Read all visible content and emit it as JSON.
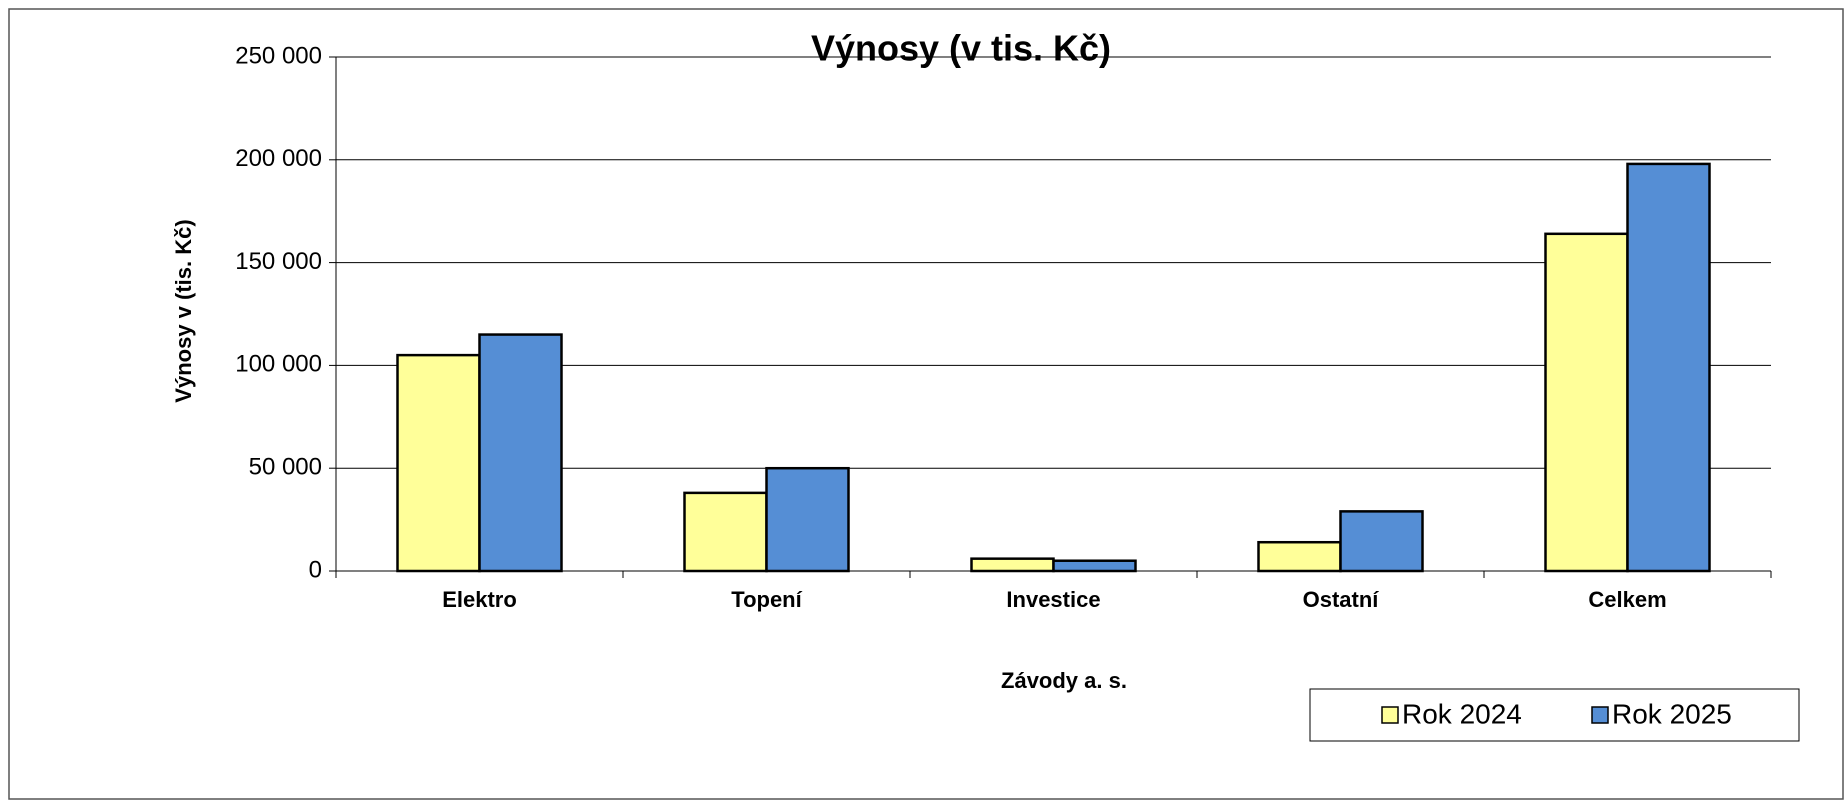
{
  "chart_data": {
    "type": "bar",
    "title": "Výnosy (v tis. Kč)",
    "x_label": "Závody a. s.",
    "y_label": "Výnosy v (tis. Kč)",
    "categories": [
      "Elektro",
      "Topení",
      "Investice",
      "Ostatní",
      "Celkem"
    ],
    "series": [
      {
        "name": "Rok 2024",
        "color": "#ffff99",
        "values": [
          105000,
          38000,
          6000,
          14000,
          164000
        ]
      },
      {
        "name": "Rok 2025",
        "color": "#558ed5",
        "values": [
          115000,
          50000,
          5000,
          29000,
          198000
        ]
      }
    ],
    "ylim": [
      0,
      250000
    ],
    "yticks": [
      0,
      {
        "value": 50000,
        "label": "50 000"
      },
      {
        "value": 100000,
        "label": "100 000"
      },
      {
        "value": 150000,
        "label": "150 000"
      },
      {
        "value": 200000,
        "label": "200 000"
      },
      {
        "value": 250000,
        "label": "250 000"
      }
    ],
    "grid": true,
    "legend": "bottom-right"
  }
}
